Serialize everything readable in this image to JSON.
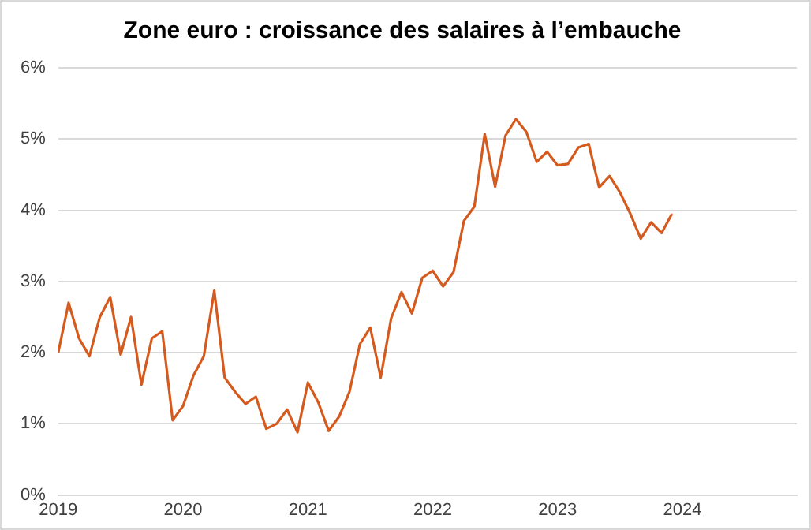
{
  "chart_data": {
    "type": "line",
    "title": "Zone euro : croissance des salaires à l’embauche",
    "x": [
      "2019-01",
      "2019-02",
      "2019-03",
      "2019-04",
      "2019-05",
      "2019-06",
      "2019-07",
      "2019-08",
      "2019-09",
      "2019-10",
      "2019-11",
      "2019-12",
      "2020-01",
      "2020-02",
      "2020-03",
      "2020-04",
      "2020-05",
      "2020-06",
      "2020-07",
      "2020-08",
      "2020-09",
      "2020-10",
      "2020-11",
      "2020-12",
      "2021-01",
      "2021-02",
      "2021-03",
      "2021-04",
      "2021-05",
      "2021-06",
      "2021-07",
      "2021-08",
      "2021-09",
      "2021-10",
      "2021-11",
      "2021-12",
      "2022-01",
      "2022-02",
      "2022-03",
      "2022-04",
      "2022-05",
      "2022-06",
      "2022-07",
      "2022-08",
      "2022-09",
      "2022-10",
      "2022-11",
      "2022-12",
      "2023-01",
      "2023-02",
      "2023-03",
      "2023-04",
      "2023-05",
      "2023-06",
      "2023-07",
      "2023-08",
      "2023-09",
      "2023-10",
      "2023-11",
      "2023-12"
    ],
    "series": [
      {
        "color": "#d45a1e",
        "values": [
          2.0,
          2.7,
          2.2,
          1.95,
          2.5,
          2.78,
          1.97,
          2.5,
          1.55,
          2.2,
          2.3,
          1.05,
          1.25,
          1.68,
          1.95,
          2.87,
          1.65,
          1.45,
          1.28,
          1.38,
          0.93,
          1.0,
          1.2,
          0.88,
          1.58,
          1.3,
          0.9,
          1.1,
          1.45,
          2.12,
          2.35,
          1.65,
          2.48,
          2.85,
          2.55,
          3.05,
          3.15,
          2.93,
          3.13,
          3.85,
          4.05,
          5.07,
          4.33,
          5.05,
          5.28,
          5.1,
          4.68,
          4.82,
          4.63,
          4.65,
          4.88,
          4.93,
          4.32,
          4.48,
          4.25,
          3.95,
          3.6,
          3.83,
          3.68,
          3.95
        ]
      }
    ],
    "xlim": [
      "2019-01",
      "2024-12"
    ],
    "xticks": [
      {
        "value": "2019",
        "label": "2019"
      },
      {
        "value": "2020",
        "label": "2020"
      },
      {
        "value": "2021",
        "label": "2021"
      },
      {
        "value": "2022",
        "label": "2022"
      },
      {
        "value": "2023",
        "label": "2023"
      },
      {
        "value": "2024",
        "label": "2024"
      }
    ],
    "ylim": [
      0,
      6
    ],
    "yticks": [
      {
        "value": 0,
        "label": "0%"
      },
      {
        "value": 1,
        "label": "1%"
      },
      {
        "value": 2,
        "label": "2%"
      },
      {
        "value": 3,
        "label": "3%"
      },
      {
        "value": 4,
        "label": "4%"
      },
      {
        "value": 5,
        "label": "5%"
      },
      {
        "value": 6,
        "label": "6%"
      }
    ],
    "grid": "y",
    "marker": "none",
    "line_style": "solid"
  }
}
